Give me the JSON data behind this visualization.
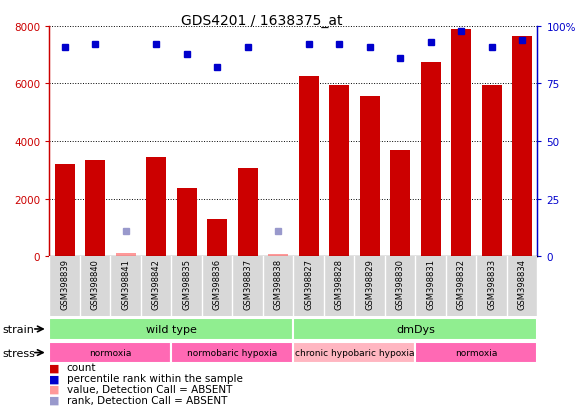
{
  "title": "GDS4201 / 1638375_at",
  "samples": [
    "GSM398839",
    "GSM398840",
    "GSM398841",
    "GSM398842",
    "GSM398835",
    "GSM398836",
    "GSM398837",
    "GSM398838",
    "GSM398827",
    "GSM398828",
    "GSM398829",
    "GSM398830",
    "GSM398831",
    "GSM398832",
    "GSM398833",
    "GSM398834"
  ],
  "counts": [
    3200,
    3350,
    100,
    3450,
    2380,
    1280,
    3050,
    80,
    6250,
    5950,
    5550,
    3700,
    6750,
    7900,
    5950,
    7650
  ],
  "percentile_ranks": [
    91,
    92,
    null,
    92,
    88,
    82,
    91,
    null,
    92,
    92,
    91,
    86,
    93,
    98,
    91,
    94
  ],
  "detection_absent": [
    false,
    false,
    true,
    false,
    false,
    false,
    false,
    true,
    false,
    false,
    false,
    false,
    false,
    false,
    false,
    false
  ],
  "absent_rank_vals": [
    null,
    null,
    11,
    null,
    null,
    null,
    null,
    11,
    null,
    null,
    null,
    null,
    null,
    null,
    null,
    null
  ],
  "ylim_left": [
    0,
    8000
  ],
  "ylim_right": [
    0,
    100
  ],
  "yticks_left": [
    0,
    2000,
    4000,
    6000,
    8000
  ],
  "yticks_right": [
    0,
    25,
    50,
    75,
    100
  ],
  "strain_groups": [
    {
      "label": "wild type",
      "start": 0,
      "end": 8,
      "color": "#90EE90"
    },
    {
      "label": "dmDys",
      "start": 8,
      "end": 16,
      "color": "#90EE90"
    }
  ],
  "stress_groups": [
    {
      "label": "normoxia",
      "start": 0,
      "end": 4,
      "color": "#FF69B4"
    },
    {
      "label": "normobaric hypoxia",
      "start": 4,
      "end": 8,
      "color": "#FF69B4"
    },
    {
      "label": "chronic hypobaric hypoxia",
      "start": 8,
      "end": 12,
      "color": "#FFB6C1"
    },
    {
      "label": "normoxia",
      "start": 12,
      "end": 16,
      "color": "#FF69B4"
    }
  ],
  "bar_color": "#CC0000",
  "absent_bar_color": "#FF9999",
  "dot_color": "#0000CC",
  "absent_dot_color": "#9999CC",
  "left_axis_color": "#CC0000",
  "right_axis_color": "#0000CC",
  "bg_color": "#D8D8D8",
  "plot_bg_color": "#FFFFFF"
}
